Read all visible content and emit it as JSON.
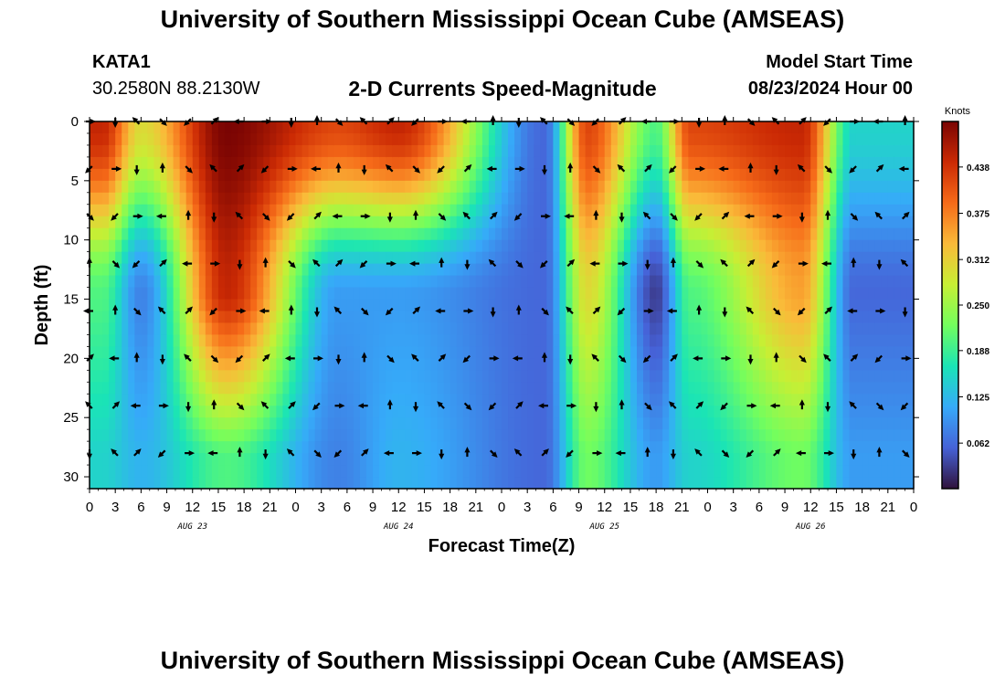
{
  "header": {
    "title": "University of Southern Mississippi Ocean Cube (AMSEAS)",
    "station_id": "KATA1",
    "coords": "30.2580N  88.2130W",
    "subtitle": "2-D Currents Speed-Magnitude",
    "model_start_label": "Model Start Time",
    "model_start_value": "08/23/2024 Hour 00"
  },
  "footer": {
    "title": "University of Southern Mississippi Ocean Cube (AMSEAS)"
  },
  "chart_data": {
    "type": "heatmap",
    "title": "2-D Currents Speed-Magnitude",
    "xlabel": "Forecast Time(Z)",
    "ylabel": "Depth (ft)",
    "x_range_hours": [
      0,
      96
    ],
    "ylim": [
      0,
      31
    ],
    "y_inverted": true,
    "x_tick_labels": [
      "0",
      "3",
      "6",
      "9",
      "12",
      "15",
      "18",
      "21",
      "0",
      "3",
      "6",
      "9",
      "12",
      "15",
      "18",
      "21",
      "0",
      "3",
      "6",
      "9",
      "12",
      "15",
      "18",
      "21",
      "0",
      "3",
      "6",
      "9",
      "12",
      "15",
      "18",
      "21",
      "0"
    ],
    "y_ticks": [
      0,
      5,
      10,
      15,
      20,
      25,
      30
    ],
    "day_labels": [
      "AUG 23",
      "AUG 24",
      "AUG 25",
      "AUG 26"
    ],
    "colorbar": {
      "title": "Knots",
      "ticks": [
        "0.062",
        "0.125",
        "0.188",
        "0.250",
        "0.312",
        "0.375",
        "0.438"
      ],
      "range": [
        0,
        0.5
      ],
      "colors": [
        "#30123b",
        "#4662d7",
        "#36aaf9",
        "#1ae4b6",
        "#72fe5e",
        "#c7ef34",
        "#faba39",
        "#f66b19",
        "#cb2a04",
        "#7a0403"
      ]
    },
    "arrow_hours": [
      0,
      3,
      5.5,
      8.5,
      11.5,
      14.5,
      17.5,
      20.5,
      23.5,
      26.5,
      29,
      32,
      35,
      38,
      41,
      44,
      47,
      50,
      53,
      56,
      59,
      62,
      65,
      68,
      71,
      74,
      77,
      80,
      83,
      86,
      89,
      92,
      95
    ],
    "arrow_depths": [
      0,
      4,
      8,
      12,
      16,
      20,
      24,
      28
    ],
    "current_speed_knots_by_hour": [
      {
        "hour": 1.5,
        "surface": 0.45,
        "depth_15": 0.2,
        "depth_28": 0.15
      },
      {
        "hour": 6,
        "surface": 0.3,
        "depth_15": 0.08,
        "depth_28": 0.12
      },
      {
        "hour": 16,
        "surface": 0.5,
        "depth_15": 0.45,
        "depth_28": 0.2
      },
      {
        "hour": 29,
        "surface": 0.42,
        "depth_15": 0.1,
        "depth_28": 0.08
      },
      {
        "hour": 36,
        "surface": 0.45,
        "depth_15": 0.1,
        "depth_28": 0.12
      },
      {
        "hour": 53,
        "surface": 0.06,
        "depth_15": 0.06,
        "depth_28": 0.06
      },
      {
        "hour": 58,
        "surface": 0.42,
        "depth_15": 0.3,
        "depth_28": 0.22
      },
      {
        "hour": 66,
        "surface": 0.2,
        "depth_15": 0.03,
        "depth_28": 0.1
      },
      {
        "hour": 70,
        "surface": 0.42,
        "depth_15": 0.2,
        "depth_28": 0.15
      },
      {
        "hour": 83,
        "surface": 0.45,
        "depth_15": 0.35,
        "depth_28": 0.22
      },
      {
        "hour": 89,
        "surface": 0.15,
        "depth_15": 0.06,
        "depth_28": 0.1
      }
    ]
  }
}
